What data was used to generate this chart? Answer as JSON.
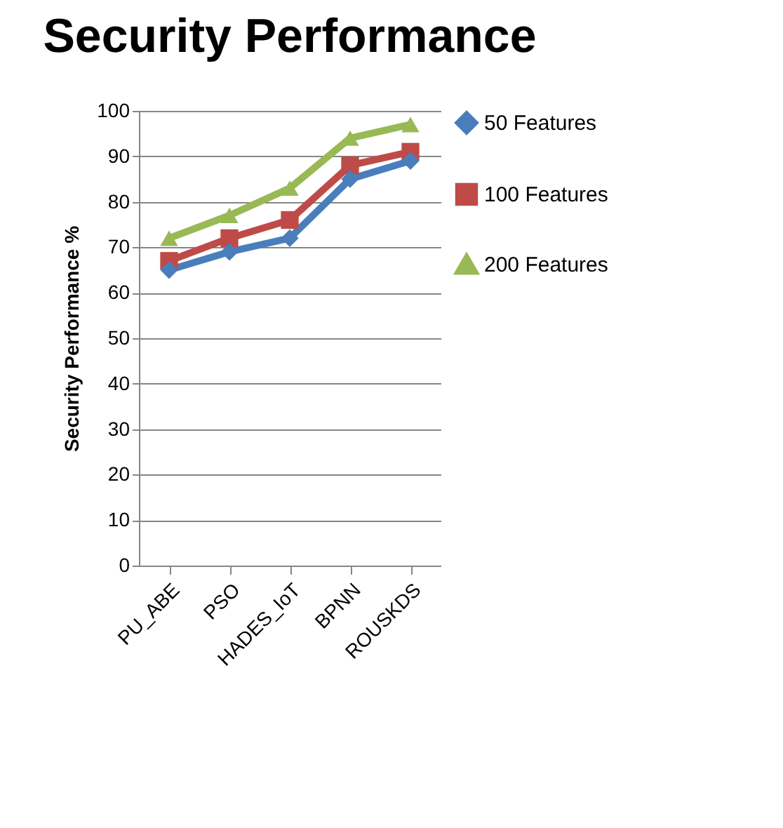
{
  "chart_data": {
    "type": "line",
    "title": "Security Performance",
    "ylabel": "Security Performance %",
    "categories": [
      "PU_ABE",
      "PSO",
      "HADES_IoT",
      "BPNN",
      "ROUSKDS"
    ],
    "series": [
      {
        "name": "50 Features",
        "color": "#4a7ebb",
        "marker": "diamond",
        "values": [
          65,
          69,
          72,
          85,
          89
        ]
      },
      {
        "name": "100 Features",
        "color": "#be4b48",
        "marker": "square",
        "values": [
          67,
          72,
          76,
          88,
          91
        ]
      },
      {
        "name": "200 Features",
        "color": "#98b954",
        "marker": "triangle",
        "values": [
          72,
          77,
          83,
          94,
          97
        ]
      }
    ],
    "ylim": [
      0,
      100
    ],
    "yticks": [
      0,
      10,
      20,
      30,
      40,
      50,
      60,
      70,
      80,
      90,
      100
    ],
    "grid": "y",
    "legend": "right",
    "line_style": "solid"
  }
}
